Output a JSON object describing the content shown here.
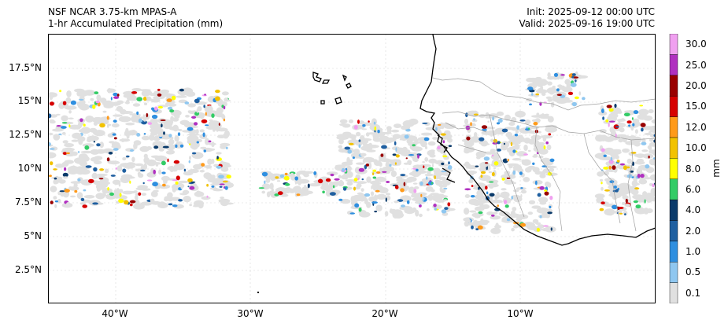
{
  "header": {
    "model": "NSF NCAR 3.75-km MPAS-A",
    "field": "1-hr Accumulated Precipitation (mm)",
    "init": "Init: 2025-09-12 00:00 UTC",
    "valid": "Valid: 2025-09-16 19:00 UTC"
  },
  "axes": {
    "lat_ticks": [
      "17.5°N",
      "15°N",
      "12.5°N",
      "10°N",
      "7.5°N",
      "5°N",
      "2.5°N"
    ],
    "lon_ticks": [
      "40°W",
      "30°W",
      "20°W",
      "10°W"
    ]
  },
  "colorbar": {
    "unit": "mm",
    "levels": [
      "0.1",
      "0.5",
      "1.0",
      "2.0",
      "4.0",
      "6.0",
      "8.0",
      "10.0",
      "12.0",
      "15.0",
      "20.0",
      "25.0",
      "30.0"
    ],
    "colors": [
      "#e0e0e0",
      "#8fc7f0",
      "#2f8fe0",
      "#1f5fa0",
      "#0a3a6a",
      "#33cc66",
      "#ffff00",
      "#f2c200",
      "#ff9a1a",
      "#d60000",
      "#990000",
      "#b030c0",
      "#f0a0f0"
    ]
  },
  "map": {
    "coastline_color": "#000000",
    "border_color": "#a0a0a0",
    "gridline_color": "#d8d8d8"
  }
}
